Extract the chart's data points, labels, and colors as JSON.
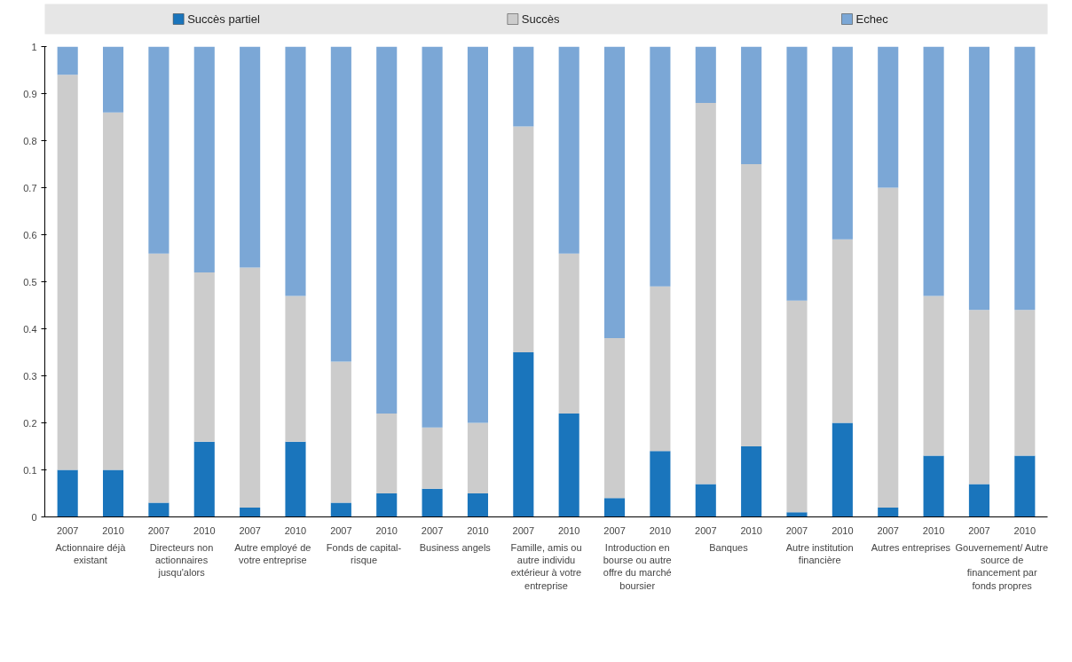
{
  "chart_data": {
    "type": "bar",
    "stacked": true,
    "categories": [
      "2007",
      "2010",
      "2007",
      "2010",
      "2007",
      "2010",
      "2007",
      "2010",
      "2007",
      "2010",
      "2007",
      "2010",
      "2007",
      "2010",
      "2007",
      "2010",
      "2007",
      "2010",
      "2007",
      "2010",
      "2007",
      "2010"
    ],
    "series": [
      {
        "name": "Succès partiel",
        "color": "#1a75bc",
        "values": [
          0.1,
          0.1,
          0.03,
          0.16,
          0.02,
          0.16,
          0.03,
          0.05,
          0.06,
          0.05,
          0.35,
          0.22,
          0.04,
          0.14,
          0.07,
          0.15,
          0.01,
          0.2,
          0.02,
          0.13,
          0.07,
          0.13
        ]
      },
      {
        "name": "Succès",
        "color": "#cccccc",
        "values": [
          0.84,
          0.76,
          0.53,
          0.36,
          0.51,
          0.31,
          0.3,
          0.17,
          0.13,
          0.15,
          0.48,
          0.34,
          0.34,
          0.35,
          0.81,
          0.6,
          0.45,
          0.39,
          0.68,
          0.34,
          0.37,
          0.31
        ]
      },
      {
        "name": "Echec",
        "color": "#7ba7d6",
        "values": [
          0.06,
          0.14,
          0.44,
          0.48,
          0.47,
          0.53,
          0.67,
          0.78,
          0.81,
          0.8,
          0.17,
          0.44,
          0.62,
          0.51,
          0.12,
          0.25,
          0.54,
          0.41,
          0.3,
          0.53,
          0.56,
          0.56
        ]
      }
    ],
    "ylim": [
      0,
      1
    ],
    "yticks": [
      0,
      0.1,
      0.2,
      0.3,
      0.4,
      0.5,
      0.6,
      0.7,
      0.8,
      0.9,
      1
    ],
    "legend": "top",
    "grid": false,
    "annotations": [
      "Actionnaire déjà existant",
      "Directeurs non actionnaires jusqu'alors",
      "Autre employé de votre entreprise",
      "Fonds de capital-risque",
      "Business angels",
      "Famille, amis ou autre individu extérieur à votre entreprise",
      "Introduction en bourse ou autre offre du marché boursier",
      "Banques",
      "Autre institution financière",
      "Autres entreprises",
      "Gouvernement/ Autre source de financement par fonds propres"
    ]
  }
}
